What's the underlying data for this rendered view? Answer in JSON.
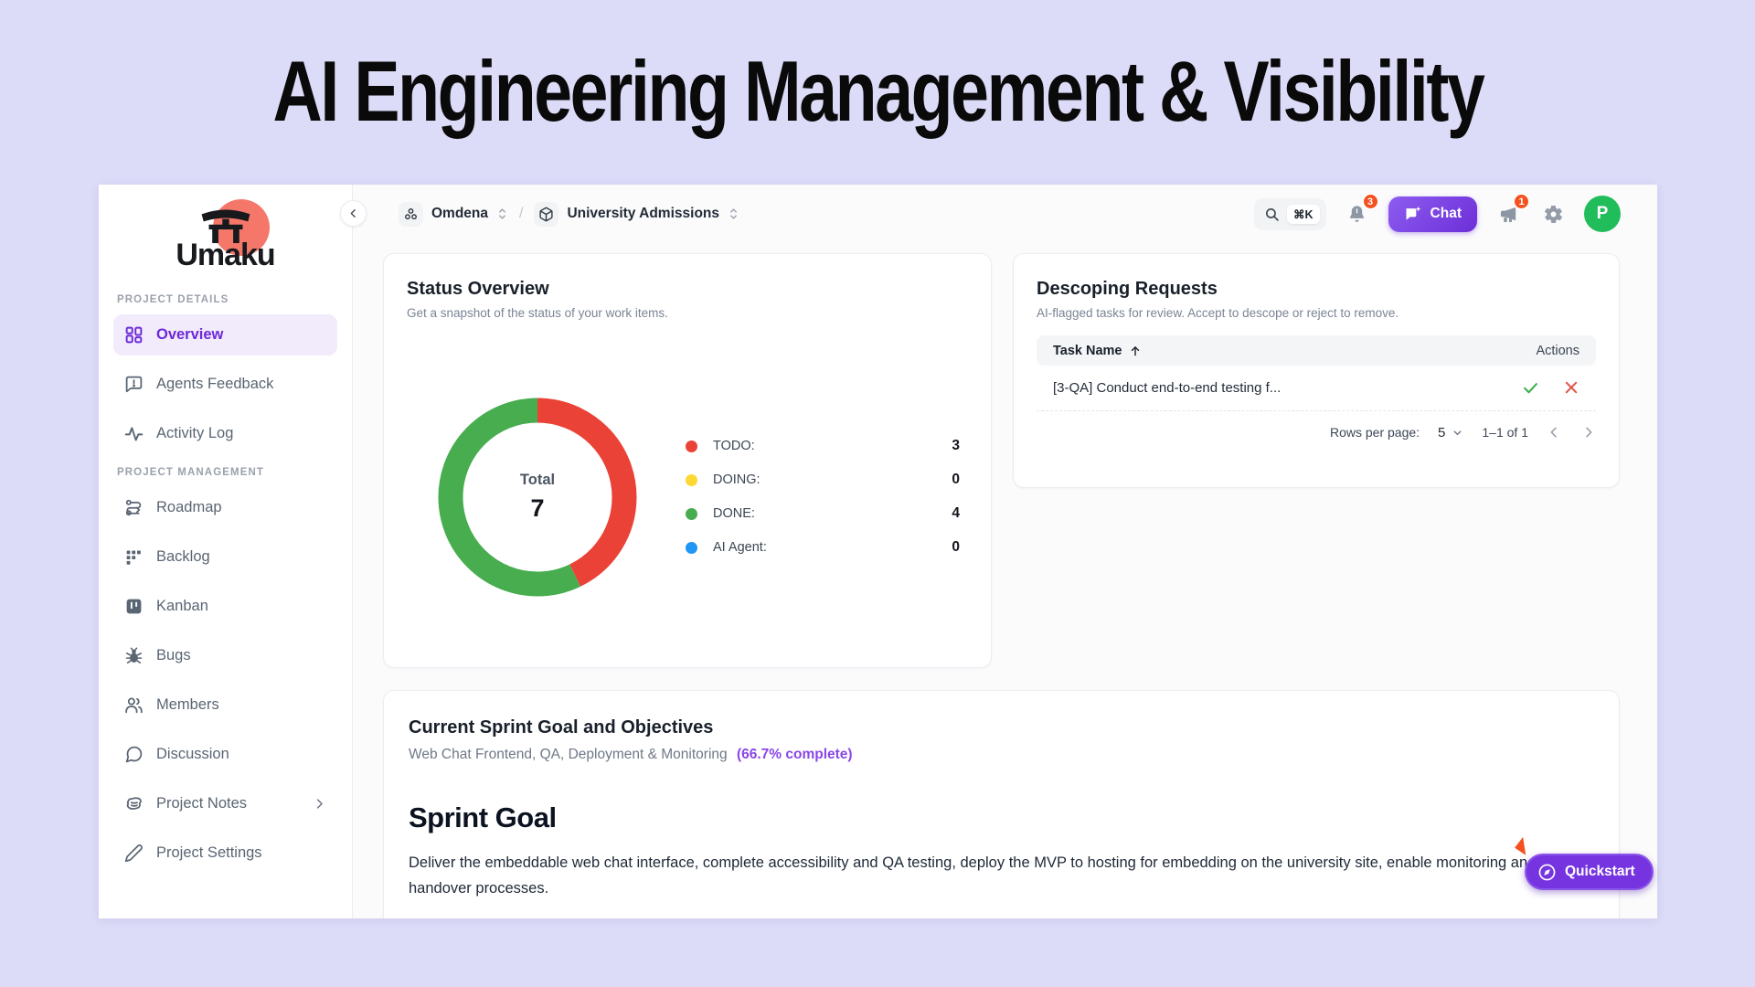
{
  "page": {
    "title": "AI Engineering Management & Visibility"
  },
  "colors": {
    "accent_purple": "#7c3aed",
    "badge_red": "#f4511e",
    "avatar_green": "#21bd5a",
    "logo_salmon": "#f4776a",
    "lavender_bg": "#dcdbf8"
  },
  "icons": {
    "logo": "torii-gate",
    "chat_button": "chat-bubble-sparkle",
    "quickstart": "compass",
    "notifications": "bell",
    "updates": "megaphone",
    "settings": "gear",
    "search": "magnifier"
  },
  "sidebar": {
    "logo_text": "Umaku",
    "sections": [
      {
        "label": "PROJECT DETAILS",
        "items": [
          {
            "label": "Overview"
          },
          {
            "label": "Agents Feedback"
          },
          {
            "label": "Activity Log"
          }
        ]
      },
      {
        "label": "PROJECT MANAGEMENT",
        "items": [
          {
            "label": "Roadmap"
          },
          {
            "label": "Backlog"
          },
          {
            "label": "Kanban"
          },
          {
            "label": "Bugs"
          },
          {
            "label": "Members"
          },
          {
            "label": "Discussion"
          },
          {
            "label": "Project Notes"
          },
          {
            "label": "Project Settings"
          }
        ]
      }
    ]
  },
  "topbar": {
    "breadcrumb": {
      "org": "Omdena",
      "separator": "/",
      "project": "University Admissions"
    },
    "search_shortcut": "⌘K",
    "notifications_badge": "3",
    "chat_label": "Chat",
    "updates_badge": "1",
    "avatar_initial": "P"
  },
  "status_card": {
    "title": "Status Overview",
    "subtitle": "Get a snapshot of the status of your work items."
  },
  "chart_data": {
    "type": "pie",
    "donut": true,
    "title": "Status Overview",
    "labels": [
      "TODO:",
      "DOING:",
      "DONE:",
      "AI Agent:"
    ],
    "values": [
      3,
      0,
      4,
      0
    ],
    "colors": [
      "#ea4236",
      "#fdd835",
      "#47ad4f",
      "#2196f3"
    ],
    "center_label": "Total",
    "center_value": "7",
    "total": 7,
    "legend_position": "right"
  },
  "descoping_card": {
    "title": "Descoping Requests",
    "subtitle": "AI-flagged tasks for review. Accept to descope or reject to remove.",
    "columns": {
      "task": "Task Name",
      "actions": "Actions"
    },
    "rows": [
      {
        "task": "[3-QA] Conduct end-to-end testing f..."
      }
    ],
    "pagination": {
      "rows_per_page_label": "Rows per page:",
      "rows_per_page": "5",
      "range": "1–1 of 1"
    }
  },
  "sprint_card": {
    "title": "Current Sprint Goal and Objectives",
    "subtitle": "Web Chat Frontend, QA, Deployment & Monitoring",
    "completion": "(66.7% complete)",
    "goal_heading": "Sprint Goal",
    "goal_text": "Deliver the embeddable web chat interface, complete accessibility and QA testing, deploy the MVP to hosting for embedding on the university site, enable monitoring and handover processes."
  },
  "quickstart_label": "Quickstart"
}
